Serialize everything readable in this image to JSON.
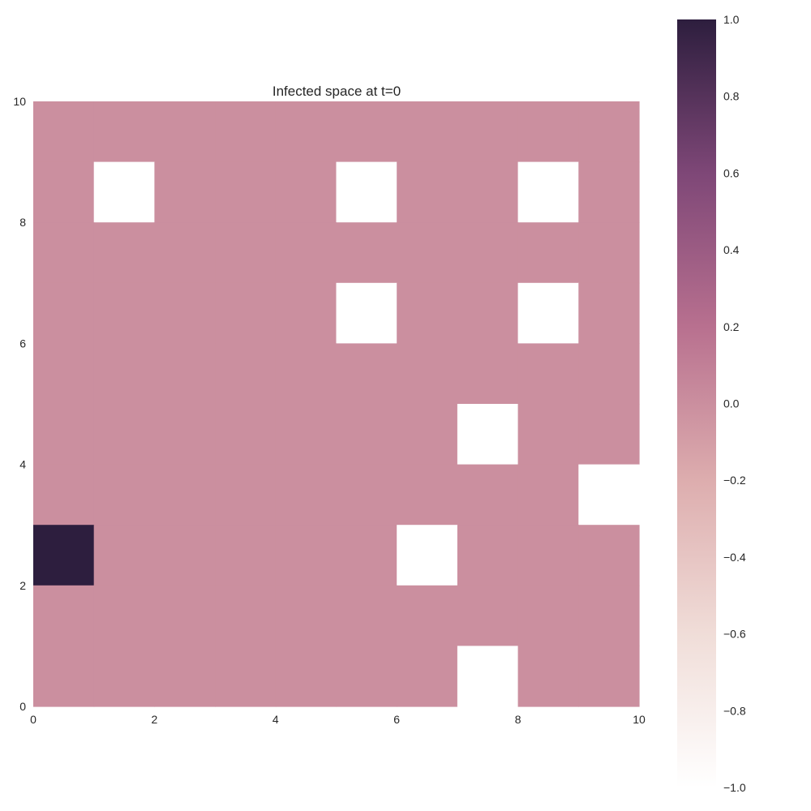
{
  "chart_data": {
    "type": "heatmap",
    "title": "Infected space at t=0",
    "xlabel": "",
    "ylabel": "",
    "xlim": [
      0,
      10
    ],
    "ylim": [
      0,
      10
    ],
    "x_ticks": [
      "0",
      "2",
      "4",
      "6",
      "8",
      "10"
    ],
    "y_ticks": [
      "0",
      "2",
      "4",
      "6",
      "8",
      "10"
    ],
    "grid": false,
    "colorbar": {
      "range": [
        -1.0,
        1.0
      ],
      "ticks": [
        "1.0",
        "0.8",
        "0.6",
        "0.4",
        "0.2",
        "0.0",
        "−0.2",
        "−0.4",
        "−0.6",
        "−0.8",
        "−1.0"
      ],
      "colors": [
        "#ffffff",
        "#f0ddd8",
        "#ddadae",
        "#b8708f",
        "#7e4777",
        "#2d1e3e"
      ]
    },
    "rows_top_to_bottom": [
      [
        0,
        0,
        0,
        0,
        0,
        0,
        0,
        0,
        0,
        0
      ],
      [
        0,
        -1,
        0,
        0,
        0,
        -1,
        0,
        0,
        -1,
        0
      ],
      [
        0,
        0,
        0,
        0,
        0,
        0,
        0,
        0,
        0,
        0
      ],
      [
        0,
        0,
        0,
        0,
        0,
        -1,
        0,
        0,
        -1,
        0
      ],
      [
        0,
        0,
        0,
        0,
        0,
        0,
        0,
        0,
        0,
        0
      ],
      [
        0,
        0,
        0,
        0,
        0,
        0,
        0,
        -1,
        0,
        0
      ],
      [
        0,
        0,
        0,
        0,
        0,
        0,
        0,
        0,
        0,
        -1
      ],
      [
        1,
        0,
        0,
        0,
        0,
        0,
        -1,
        0,
        0,
        0
      ],
      [
        0,
        0,
        0,
        0,
        0,
        0,
        0,
        0,
        0,
        0
      ],
      [
        0,
        0,
        0,
        0,
        0,
        0,
        0,
        -1,
        0,
        0
      ]
    ]
  }
}
